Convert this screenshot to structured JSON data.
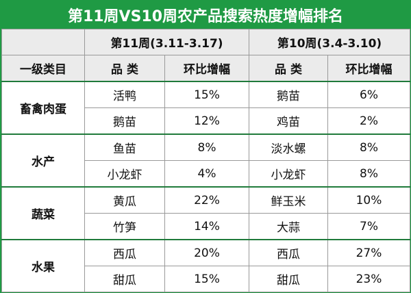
{
  "table": {
    "title": "第11周VS10周农产品搜索热度增幅排名",
    "periods": [
      "第11周(3.11-3.17)",
      "第10周(3.4-3.10)"
    ],
    "columns": [
      "一级类目",
      "品 类",
      "环比增幅",
      "品 类",
      "环比增幅"
    ],
    "groups": [
      {
        "category": "畜禽肉蛋",
        "rows": [
          [
            "活鸭",
            "15%",
            "鹅苗",
            "6%"
          ],
          [
            "鹅苗",
            "12%",
            "鸡苗",
            "2%"
          ]
        ]
      },
      {
        "category": "水产",
        "rows": [
          [
            "鱼苗",
            "8%",
            "淡水螺",
            "8%"
          ],
          [
            "小龙虾",
            "4%",
            "小龙虾",
            "8%"
          ]
        ]
      },
      {
        "category": "蔬菜",
        "rows": [
          [
            "黄瓜",
            "22%",
            "鲜玉米",
            "10%"
          ],
          [
            "竹笋",
            "14%",
            "大蒜",
            "7%"
          ]
        ]
      },
      {
        "category": "水果",
        "rows": [
          [
            "西瓜",
            "20%",
            "西瓜",
            "27%"
          ],
          [
            "甜瓜",
            "15%",
            "甜瓜",
            "23%"
          ]
        ]
      }
    ]
  }
}
